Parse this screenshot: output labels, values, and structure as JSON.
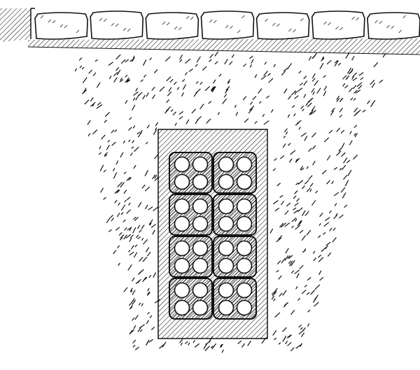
{
  "figure": {
    "ink_color": "#111111",
    "paper_color": "#ffffff",
    "pavement": {
      "slab_count": 7
    },
    "duct_bank": {
      "block_columns": 2,
      "block_rows": 4,
      "ducts_per_block": 4
    }
  }
}
